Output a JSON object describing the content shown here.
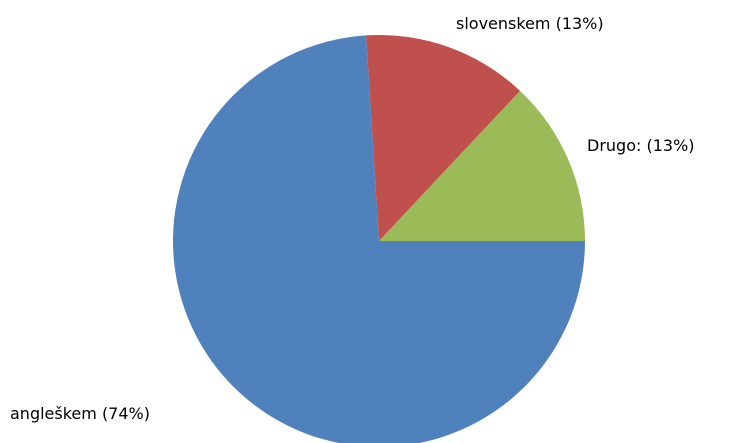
{
  "chart_data": {
    "type": "pie",
    "start_angle_deg": 0,
    "direction": "counterclockwise",
    "slices": [
      {
        "label": "Drugo: (13%)",
        "category": "Drugo:",
        "value": 13,
        "color": "#9bbb59"
      },
      {
        "label": "slovenskem (13%)",
        "category": "slovenskem",
        "value": 13,
        "color": "#c0504d"
      },
      {
        "label": "angleškem (74%)",
        "category": "angleškem",
        "value": 74,
        "color": "#4f81bd"
      }
    ]
  }
}
